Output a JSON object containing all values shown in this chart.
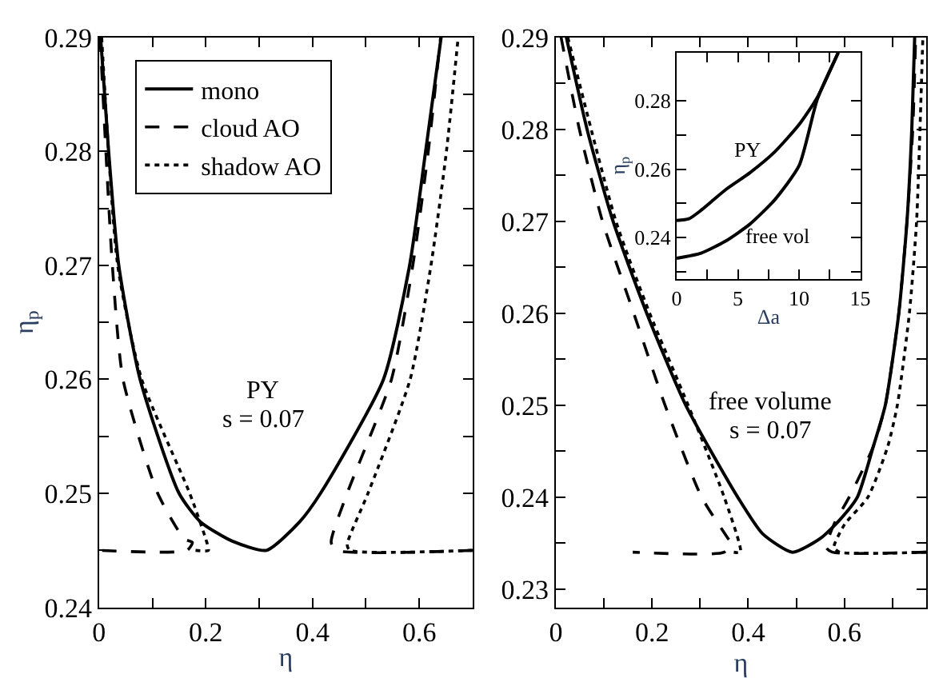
{
  "chart_data": [
    {
      "type": "line",
      "xlabel": "η",
      "ylabel": "η$_{p}$",
      "xlim": [
        0,
        0.7
      ],
      "ylim": [
        0.24,
        0.29
      ],
      "xticks": [
        0,
        {
          "value": 0.1,
          "label": null
        },
        0.2,
        {
          "value": 0.3,
          "label": null
        },
        0.4,
        {
          "value": 0.5,
          "label": null
        },
        0.6
      ],
      "yticks": [
        0.24,
        {
          "value": 0.245,
          "label": null
        },
        0.25,
        {
          "value": 0.255,
          "label": null
        },
        0.26,
        {
          "value": 0.265,
          "label": null
        },
        0.27,
        {
          "value": 0.275,
          "label": null
        },
        0.28,
        {
          "value": 0.285,
          "label": null
        },
        0.29
      ],
      "legend": "top left",
      "annotations": [
        "PY",
        "s = 0.07"
      ],
      "series": [
        {
          "name": "mono",
          "color": "#000000",
          "line_style": "solid",
          "x": [
            0.003,
            0.018,
            0.037,
            0.077,
            0.15,
            0.19,
            0.25,
            0.314,
            0.376,
            0.415,
            0.533,
            0.582,
            0.612,
            0.641
          ],
          "values": [
            0.29,
            0.28,
            0.27,
            0.26,
            0.25,
            0.2475,
            0.2458,
            0.245,
            0.2475,
            0.25,
            0.26,
            0.27,
            0.28,
            0.29
          ]
        },
        {
          "name": "cloud AO",
          "color": "#000000",
          "line_style": "dashed",
          "x": [
            0.002,
            0.025,
            0.045,
            0.11,
            0.16,
            0.175,
            0.165,
            0.0,
            null,
            0.7,
            0.445,
            0.435,
            0.465,
            0.548,
            0.588,
            0.617,
            0.64
          ],
          "values": [
            0.29,
            0.27,
            0.26,
            0.25,
            0.246,
            0.2457,
            0.245,
            0.245,
            null,
            0.245,
            0.245,
            0.2457,
            0.25,
            0.26,
            0.27,
            0.28,
            0.29
          ]
        },
        {
          "name": "shadow AO",
          "color": "#000000",
          "line_style": "dotted",
          "x": [
            0.005,
            0.035,
            0.08,
            0.17,
            0.2,
            0.205,
            0.18,
            null,
            0.7,
            0.47,
            0.465,
            0.504,
            0.583,
            0.622,
            0.651,
            0.673
          ],
          "values": [
            0.29,
            0.27,
            0.26,
            0.25,
            0.246,
            0.245,
            0.245,
            null,
            0.245,
            0.245,
            0.2455,
            0.25,
            0.26,
            0.27,
            0.28,
            0.29
          ]
        }
      ]
    },
    {
      "type": "line",
      "xlabel": "η",
      "xlim": [
        0,
        0.77
      ],
      "ylim": [
        0.228,
        0.29
      ],
      "xticks": [
        0,
        {
          "value": 0.1,
          "label": null
        },
        0.2,
        {
          "value": 0.3,
          "label": null
        },
        0.4,
        {
          "value": 0.5,
          "label": null
        },
        0.6,
        {
          "value": 0.7,
          "label": null
        }
      ],
      "yticks": [
        0.23,
        {
          "value": 0.235,
          "label": null
        },
        0.24,
        {
          "value": 0.245,
          "label": null
        },
        0.25,
        {
          "value": 0.255,
          "label": null
        },
        0.26,
        {
          "value": 0.265,
          "label": null
        },
        0.27,
        {
          "value": 0.275,
          "label": null
        },
        0.28,
        {
          "value": 0.285,
          "label": null
        },
        0.29
      ],
      "annotations": [
        "free volume",
        "s = 0.07"
      ],
      "series": [
        {
          "color": "#000000",
          "line_style": "solid",
          "x": [
            0.022,
            0.065,
            0.119,
            0.189,
            0.27,
            0.378,
            0.43,
            0.492,
            0.55,
            0.59,
            0.627,
            0.66,
            0.685,
            0.713,
            0.73,
            0.74,
            0.746
          ],
          "values": [
            0.29,
            0.28,
            0.27,
            0.26,
            0.25,
            0.24,
            0.236,
            0.234,
            0.2355,
            0.2375,
            0.24,
            0.2455,
            0.25,
            0.26,
            0.27,
            0.28,
            0.29
          ]
        },
        {
          "color": "#000000",
          "line_style": "dashed",
          "x": [
            0.011,
            0.049,
            0.097,
            0.162,
            0.227,
            0.303,
            0.358,
            0.365,
            0.35,
            0.16,
            null,
            0.77,
            0.575,
            0.562,
            0.578,
            0.61,
            0.66,
            0.685,
            0.713,
            0.73,
            0.742,
            0.748
          ],
          "values": [
            0.29,
            0.28,
            0.27,
            0.26,
            0.25,
            0.24,
            0.2355,
            0.235,
            0.234,
            0.234,
            null,
            0.234,
            0.234,
            0.2345,
            0.237,
            0.24,
            0.2455,
            0.25,
            0.26,
            0.27,
            0.28,
            0.29
          ]
        },
        {
          "color": "#000000",
          "line_style": "dotted",
          "x": [
            0.025,
            0.125,
            0.195,
            0.275,
            0.35,
            0.384,
            0.37,
            null,
            0.77,
            0.59,
            0.578,
            0.6,
            0.649,
            0.69,
            0.71,
            0.735,
            0.75,
            0.757,
            0.763
          ],
          "values": [
            0.29,
            0.27,
            0.26,
            0.25,
            0.24,
            0.234,
            0.234,
            null,
            0.234,
            0.234,
            0.2345,
            0.237,
            0.24,
            0.2455,
            0.25,
            0.26,
            0.27,
            0.28,
            0.29
          ]
        }
      ]
    },
    {
      "type": "line",
      "xlabel": "Δa",
      "ylabel": "η$_{p}$",
      "xlim": [
        0,
        15
      ],
      "ylim": [
        0.228,
        0.294
      ],
      "xticks": [
        0,
        {
          "value": 2.5,
          "label": null
        },
        5,
        {
          "value": 7.5,
          "label": null
        },
        10,
        {
          "value": 12.5,
          "label": null
        },
        15
      ],
      "yticks": [
        {
          "value": 0.23,
          "label": null
        },
        0.24,
        {
          "value": 0.25,
          "label": null
        },
        0.26,
        {
          "value": 0.27,
          "label": null
        },
        0.28
      ],
      "annotations": [
        "PY",
        "free vol"
      ],
      "series": [
        {
          "color": "#000000",
          "line_style": "solid",
          "x": [
            0,
            1,
            2,
            3,
            4,
            6,
            8,
            10,
            11.5,
            13.2
          ],
          "values": [
            0.245,
            0.2455,
            0.248,
            0.251,
            0.254,
            0.259,
            0.265,
            0.273,
            0.281,
            0.294
          ]
        },
        {
          "color": "#000000",
          "line_style": "solid",
          "x": [
            0,
            2,
            4,
            6,
            8,
            10,
            11.5,
            13.2
          ],
          "values": [
            0.234,
            0.2355,
            0.239,
            0.244,
            0.251,
            0.261,
            0.2805,
            0.294
          ]
        }
      ]
    }
  ]
}
